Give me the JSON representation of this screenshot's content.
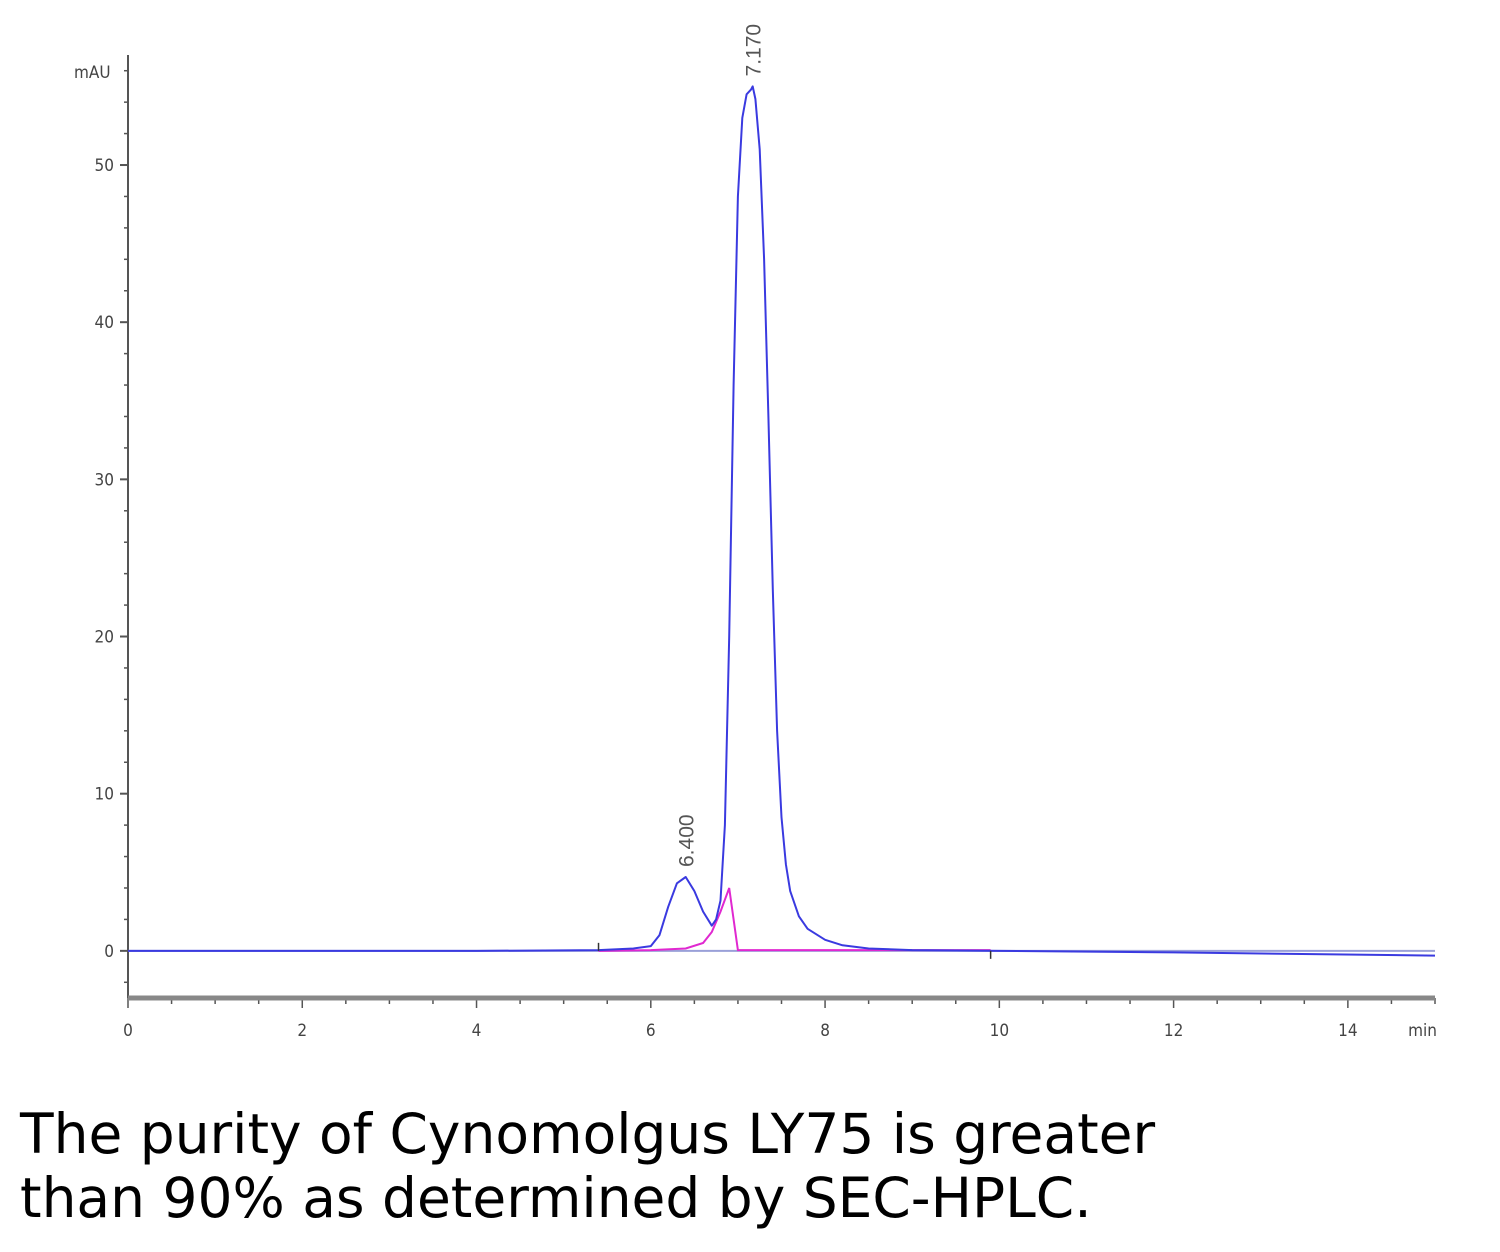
{
  "chart_data": {
    "type": "line",
    "ylabel": "mAU",
    "xlabel": "min",
    "xlim": [
      0,
      15
    ],
    "ylim": [
      -3,
      57
    ],
    "x_ticks": [
      0,
      2,
      4,
      6,
      8,
      10,
      12,
      14
    ],
    "y_ticks": [
      0,
      10,
      20,
      30,
      40,
      50
    ],
    "x_tick_labels": [
      "0",
      "2",
      "4",
      "6",
      "8",
      "10",
      "12",
      "14"
    ],
    "y_tick_labels": [
      "0",
      "10",
      "20",
      "30",
      "40",
      "50"
    ],
    "series": [
      {
        "color": "#3a3ae0",
        "x": [
          0.0,
          2.0,
          4.0,
          5.4,
          5.8,
          6.0,
          6.1,
          6.2,
          6.3,
          6.4,
          6.5,
          6.6,
          6.7,
          6.75,
          6.8,
          6.85,
          6.9,
          6.95,
          7.0,
          7.05,
          7.1,
          7.15,
          7.17,
          7.2,
          7.25,
          7.3,
          7.35,
          7.4,
          7.45,
          7.5,
          7.55,
          7.6,
          7.7,
          7.8,
          8.0,
          8.2,
          8.5,
          9.0,
          10.0,
          12.0,
          15.0
        ],
        "y": [
          0.0,
          0.0,
          0.0,
          0.05,
          0.15,
          0.3,
          1.0,
          2.8,
          4.3,
          4.7,
          3.8,
          2.5,
          1.6,
          2.0,
          3.2,
          8.0,
          20.0,
          36.0,
          48.0,
          53.0,
          54.5,
          54.8,
          55.0,
          54.2,
          51.0,
          44.0,
          34.0,
          23.0,
          14.0,
          8.5,
          5.5,
          3.8,
          2.2,
          1.4,
          0.7,
          0.35,
          0.15,
          0.05,
          0.0,
          -0.1,
          -0.3
        ]
      }
    ],
    "baselines": [
      {
        "color": "#e028d0",
        "x": [
          5.4,
          6.0,
          6.4,
          6.6,
          6.7,
          6.8,
          6.9,
          7.0,
          7.2,
          8.0,
          8.5,
          9.9
        ],
        "y": [
          0.0,
          0.05,
          0.15,
          0.5,
          1.2,
          2.5,
          4.0,
          0.05,
          0.05,
          0.05,
          0.05,
          0.05
        ]
      }
    ],
    "peak_annotations": [
      {
        "x": 6.4,
        "y": 4.7,
        "label": "6.400"
      },
      {
        "x": 7.17,
        "y": 55.0,
        "label": "7.170"
      }
    ]
  },
  "caption": {
    "line1": "The purity of Cynomolgus LY75 is greater",
    "line2": "than 90% as determined by SEC-HPLC."
  }
}
